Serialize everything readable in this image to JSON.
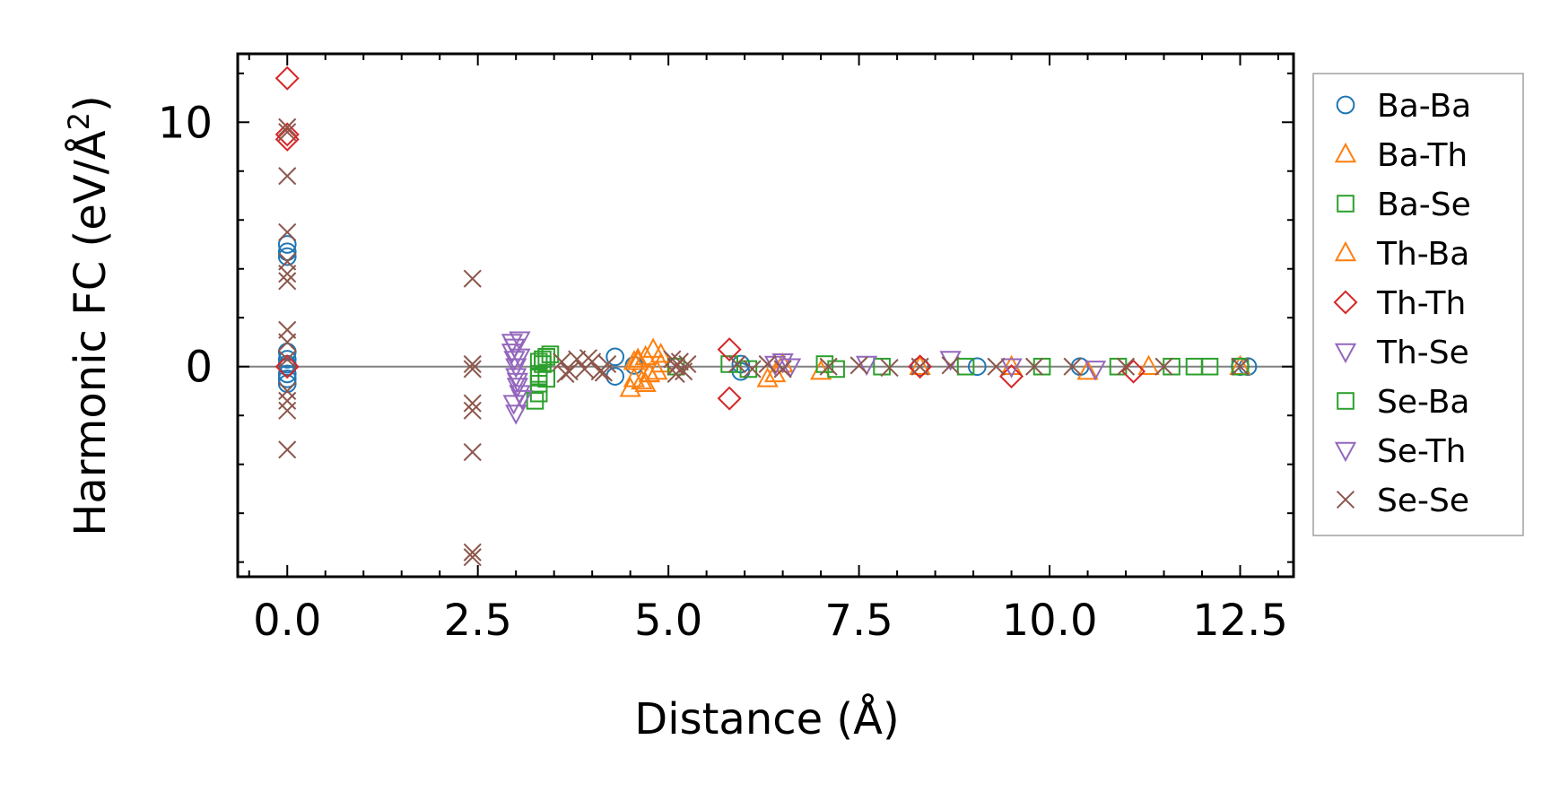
{
  "chart_data": {
    "type": "scatter",
    "title": "",
    "xlabel": "Distance (Å)",
    "ylabel_main": "Harmonic FC (eV/Å",
    "ylabel_sup": "2",
    "ylabel_close": ")",
    "xlim": [
      -0.65,
      13.2
    ],
    "ylim": [
      -8.6,
      12.8
    ],
    "xticks": [
      0.0,
      2.5,
      5.0,
      7.5,
      10.0,
      12.5
    ],
    "xtick_labels": [
      "0.0",
      "2.5",
      "5.0",
      "7.5",
      "10.0",
      "12.5"
    ],
    "yticks": [
      0,
      10
    ],
    "ytick_labels": [
      "0",
      "10"
    ],
    "zero_line": true,
    "legend_position": "outside-right",
    "series": [
      {
        "name": "Ba-Ba",
        "marker": "circle",
        "color": "#1f77b4",
        "x": [
          0.0,
          0.0,
          0.0,
          0.0,
          0.0,
          0.0,
          0.0,
          0.0,
          0.0,
          0.0,
          4.3,
          4.3,
          4.55,
          5.95,
          5.95,
          8.3,
          9.05,
          10.4,
          12.5,
          12.6
        ],
        "y": [
          5.0,
          4.7,
          4.5,
          0.6,
          0.3,
          0.0,
          -0.3,
          -0.5,
          -0.7,
          0.1,
          0.4,
          -0.4,
          0.05,
          0.1,
          -0.2,
          0.0,
          0.0,
          0.0,
          0.0,
          0.0
        ]
      },
      {
        "name": "Ba-Th",
        "marker": "triangle-up",
        "color": "#ff7f0e",
        "x": [
          4.5,
          4.55,
          4.6,
          4.65,
          4.7,
          4.75,
          4.8,
          4.85,
          4.9,
          4.55,
          4.7,
          6.3,
          6.5,
          7.0,
          8.3,
          9.5,
          10.5,
          11.3,
          12.5
        ],
        "y": [
          -0.9,
          -0.5,
          0.3,
          -0.6,
          0.4,
          -0.3,
          0.7,
          -0.2,
          0.1,
          0.2,
          -0.7,
          -0.5,
          0.1,
          -0.2,
          0.0,
          0.0,
          -0.2,
          0.0,
          0.0
        ]
      },
      {
        "name": "Ba-Se",
        "marker": "square",
        "color": "#2ca02c",
        "x": [
          3.25,
          3.3,
          3.3,
          3.3,
          3.35,
          3.4,
          3.45,
          3.3,
          5.1,
          5.8,
          6.05,
          7.05,
          7.2,
          7.8,
          8.9,
          9.9,
          10.9,
          11.6,
          11.9,
          12.1,
          12.5
        ],
        "y": [
          -1.4,
          -1.1,
          -0.7,
          -0.4,
          0.1,
          0.4,
          0.5,
          0.2,
          0.0,
          0.1,
          -0.1,
          0.1,
          -0.1,
          0.0,
          0.0,
          0.0,
          0.0,
          0.0,
          0.0,
          0.0,
          0.0
        ]
      },
      {
        "name": "Th-Ba",
        "marker": "triangle-up",
        "color": "#ff7f0e",
        "x": [
          4.6,
          4.75,
          4.9,
          6.4
        ],
        "y": [
          0.2,
          -0.3,
          0.5,
          -0.3
        ]
      },
      {
        "name": "Th-Th",
        "marker": "diamond",
        "color": "#d62728",
        "x": [
          0.0,
          0.0,
          0.0,
          0.0,
          5.8,
          5.8,
          8.3,
          9.5,
          11.1
        ],
        "y": [
          11.8,
          9.5,
          9.3,
          0.0,
          0.7,
          -1.3,
          0.0,
          -0.4,
          -0.2
        ]
      },
      {
        "name": "Th-Se",
        "marker": "triangle-down",
        "color": "#9467bd",
        "x": [
          2.95,
          2.95,
          2.98,
          3.0,
          3.0,
          3.02,
          3.05,
          3.05,
          3.08,
          2.97,
          3.0,
          6.4,
          6.5,
          6.6,
          7.6,
          8.7,
          9.5,
          10.6
        ],
        "y": [
          1.0,
          0.6,
          0.3,
          0.0,
          -0.4,
          -0.8,
          1.1,
          -1.1,
          -1.3,
          -1.5,
          -1.9,
          0.1,
          0.2,
          0.0,
          0.1,
          0.3,
          0.0,
          -0.1
        ]
      },
      {
        "name": "Se-Ba",
        "marker": "square",
        "color": "#2ca02c",
        "x": [
          3.3,
          3.35,
          3.4
        ],
        "y": [
          -0.3,
          0.3,
          -0.5
        ]
      },
      {
        "name": "Se-Th",
        "marker": "triangle-down",
        "color": "#9467bd",
        "x": [
          2.98,
          3.02,
          3.05
        ],
        "y": [
          0.8,
          -0.6,
          0.4
        ]
      },
      {
        "name": "Se-Se",
        "marker": "x",
        "color": "#8c564b",
        "x": [
          0.0,
          0.0,
          0.0,
          0.0,
          0.0,
          0.0,
          0.0,
          0.0,
          0.0,
          0.0,
          0.0,
          0.0,
          0.0,
          0.0,
          2.43,
          2.43,
          2.43,
          2.43,
          2.43,
          2.43,
          2.43,
          2.43,
          3.6,
          3.7,
          3.8,
          3.9,
          4.0,
          4.1,
          4.2,
          3.65,
          3.95,
          4.15,
          5.05,
          5.1,
          5.15,
          5.2,
          5.25,
          5.1,
          5.9,
          6.1,
          6.3,
          6.5,
          7.1,
          7.5,
          7.9,
          8.3,
          8.7,
          9.3,
          9.8,
          10.3,
          11.0,
          11.5,
          12.5
        ],
        "y": [
          9.8,
          9.6,
          7.8,
          5.5,
          4.3,
          3.8,
          3.5,
          1.5,
          1.0,
          0.3,
          -1.0,
          -1.4,
          -1.8,
          -3.4,
          3.6,
          0.1,
          -0.1,
          -1.5,
          -1.8,
          -3.5,
          -7.6,
          -7.8,
          0.2,
          -0.2,
          0.3,
          -0.1,
          0.2,
          -0.2,
          0.1,
          -0.3,
          0.35,
          -0.25,
          0.3,
          -0.3,
          0.2,
          -0.2,
          0.1,
          0.0,
          0.1,
          -0.1,
          0.1,
          -0.1,
          0.0,
          0.05,
          -0.05,
          0.0,
          0.05,
          0.0,
          0.0,
          0.0,
          0.0,
          0.0,
          0.0
        ]
      }
    ],
    "legend": [
      "Ba-Ba",
      "Ba-Th",
      "Ba-Se",
      "Th-Ba",
      "Th-Th",
      "Th-Se",
      "Se-Ba",
      "Se-Th",
      "Se-Se"
    ]
  }
}
